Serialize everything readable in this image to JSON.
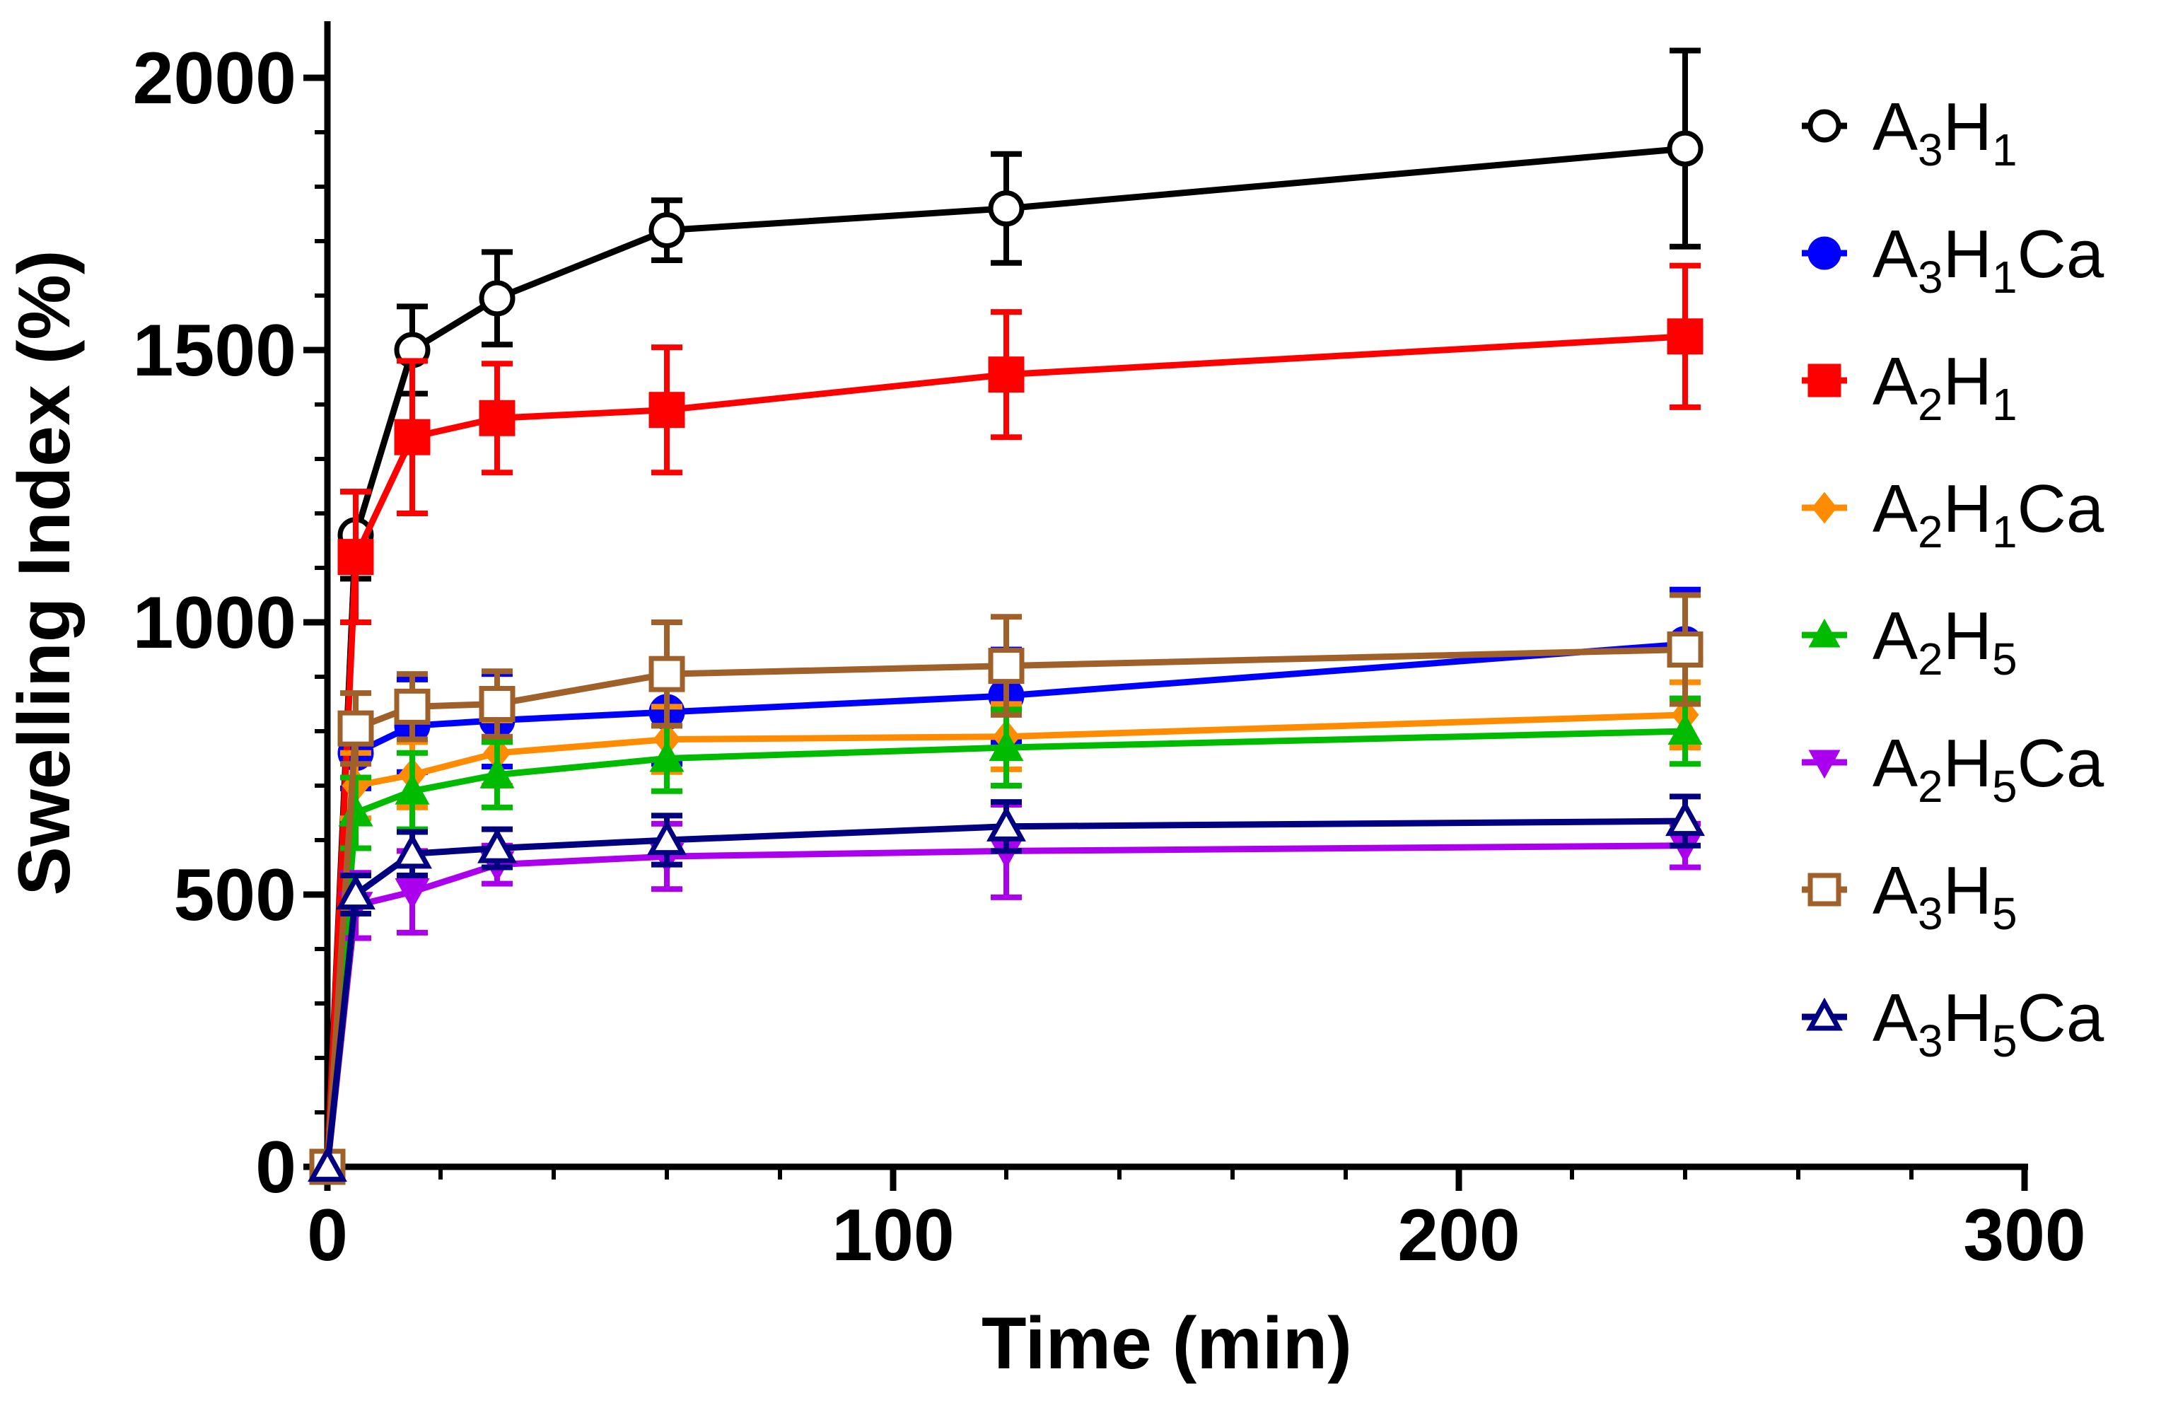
{
  "chart_data": {
    "type": "line",
    "title": "",
    "xlabel": "Time (min)",
    "ylabel": "Swelling Index (%)",
    "xlim": [
      0,
      300
    ],
    "ylim": [
      0,
      2000
    ],
    "xticks": [
      0,
      100,
      200,
      300
    ],
    "yticks": [
      0,
      500,
      1000,
      1500,
      2000
    ],
    "grid": false,
    "legend_position": "right",
    "x": [
      0,
      5,
      15,
      30,
      60,
      120,
      240
    ],
    "series": [
      {
        "name": "A3H1",
        "base": "A",
        "sub1": "3",
        "mid": "H",
        "sub2": "1",
        "suffix": "",
        "color": "#000000",
        "marker": "circle-open",
        "values": [
          0,
          1160,
          1500,
          1595,
          1720,
          1760,
          1870
        ],
        "errors": [
          0,
          80,
          80,
          85,
          55,
          100,
          180
        ]
      },
      {
        "name": "A3H1Ca",
        "base": "A",
        "sub1": "3",
        "mid": "H",
        "sub2": "1",
        "suffix": "Ca",
        "color": "#0000ff",
        "marker": "circle",
        "values": [
          0,
          760,
          810,
          820,
          835,
          865,
          960
        ],
        "errors": [
          0,
          65,
          85,
          85,
          95,
          85,
          100
        ]
      },
      {
        "name": "A2H1",
        "base": "A",
        "sub1": "2",
        "mid": "H",
        "sub2": "1",
        "suffix": "",
        "color": "#ff0000",
        "marker": "square",
        "values": [
          0,
          1120,
          1340,
          1375,
          1390,
          1455,
          1525
        ],
        "errors": [
          0,
          120,
          140,
          100,
          115,
          115,
          130
        ]
      },
      {
        "name": "A2H1Ca",
        "base": "A",
        "sub1": "2",
        "mid": "H",
        "sub2": "1",
        "suffix": "Ca",
        "color": "#ff8c00",
        "marker": "diamond",
        "values": [
          0,
          700,
          720,
          760,
          785,
          790,
          830
        ],
        "errors": [
          0,
          60,
          60,
          60,
          60,
          60,
          60
        ]
      },
      {
        "name": "A2H5",
        "base": "A",
        "sub1": "2",
        "mid": "H",
        "sub2": "5",
        "suffix": "",
        "color": "#00bb00",
        "marker": "triangle-up",
        "values": [
          0,
          650,
          690,
          720,
          750,
          770,
          800
        ],
        "errors": [
          0,
          65,
          70,
          60,
          60,
          70,
          60
        ]
      },
      {
        "name": "A2H5Ca",
        "base": "A",
        "sub1": "2",
        "mid": "H",
        "sub2": "5",
        "suffix": "Ca",
        "color": "#aa00ee",
        "marker": "triangle-down",
        "values": [
          0,
          480,
          505,
          555,
          570,
          580,
          590
        ],
        "errors": [
          0,
          60,
          75,
          35,
          60,
          85,
          40
        ]
      },
      {
        "name": "A3H5",
        "base": "A",
        "sub1": "3",
        "mid": "H",
        "sub2": "5",
        "suffix": "",
        "color": "#a0602a",
        "marker": "square-open",
        "values": [
          0,
          805,
          845,
          850,
          905,
          920,
          950
        ],
        "errors": [
          0,
          65,
          60,
          60,
          95,
          90,
          100
        ]
      },
      {
        "name": "A3H5Ca",
        "base": "A",
        "sub1": "3",
        "mid": "H",
        "sub2": "5",
        "suffix": "Ca",
        "color": "#000080",
        "marker": "triangle-up-open",
        "values": [
          0,
          500,
          575,
          585,
          600,
          625,
          635
        ],
        "errors": [
          0,
          35,
          40,
          35,
          45,
          45,
          45
        ]
      }
    ]
  }
}
